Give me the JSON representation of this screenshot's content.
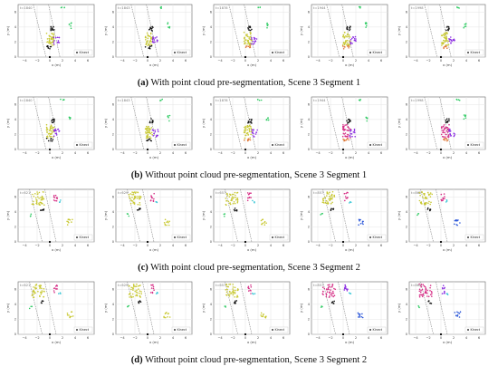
{
  "rows": [
    {
      "prefix": "(a)",
      "caption": "With point cloud pre-segmentation, Scene 3 Segment 1",
      "panels": [
        {
          "time": "t=1840",
          "legend": "Kinect"
        },
        {
          "time": "t=1843",
          "legend": "Kinect"
        },
        {
          "time": "t=1878",
          "legend": "Kinect"
        },
        {
          "time": "t=1944",
          "legend": "Kinect"
        },
        {
          "time": "t=1998",
          "legend": "Kinect"
        }
      ]
    },
    {
      "prefix": "(b)",
      "caption": "Without point cloud pre-segmentation, Scene 3 Segment 1",
      "panels": [
        {
          "time": "t=1840",
          "legend": "Kinect"
        },
        {
          "time": "t=1843",
          "legend": "Kinect"
        },
        {
          "time": "t=1878",
          "legend": "Kinect"
        },
        {
          "time": "t=1944",
          "legend": "Kinect"
        },
        {
          "time": "t=1998",
          "legend": "Kinect"
        }
      ]
    },
    {
      "prefix": "(c)",
      "caption": "With point cloud pre-segmentation, Scene 3 Segment 2",
      "panels": [
        {
          "time": "t=621",
          "legend": "Kinect"
        },
        {
          "time": "t=629",
          "legend": "Kinect"
        },
        {
          "time": "t=657",
          "legend": "Kinect"
        },
        {
          "time": "t=857",
          "legend": "Kinect"
        },
        {
          "time": "t=862",
          "legend": "Kinect"
        }
      ]
    },
    {
      "prefix": "(d)",
      "caption": "Without point cloud pre-segmentation, Scene 3 Segment 2",
      "panels": [
        {
          "time": "t=621",
          "legend": "Kinect"
        },
        {
          "time": "t=629",
          "legend": "Kinect"
        },
        {
          "time": "t=657",
          "legend": "Kinect"
        },
        {
          "time": "t=857",
          "legend": "Kinect"
        },
        {
          "time": "t=862",
          "legend": "Kinect"
        }
      ]
    }
  ],
  "axes": {
    "xlabel": "x (m)",
    "ylabel": "y (m)",
    "xticks": [
      "−4",
      "−2",
      "0",
      "2",
      "4",
      "6"
    ],
    "yticks": [
      "0",
      "2",
      "4",
      "6"
    ]
  },
  "colors": {
    "yellow": "#c8c832",
    "purple": "#8a2be2",
    "black": "#111111",
    "green": "#33cc66",
    "magenta": "#d62f86",
    "blue": "#2b57d8",
    "cyan": "#39c6d6",
    "orange": "#e07a3a"
  }
}
